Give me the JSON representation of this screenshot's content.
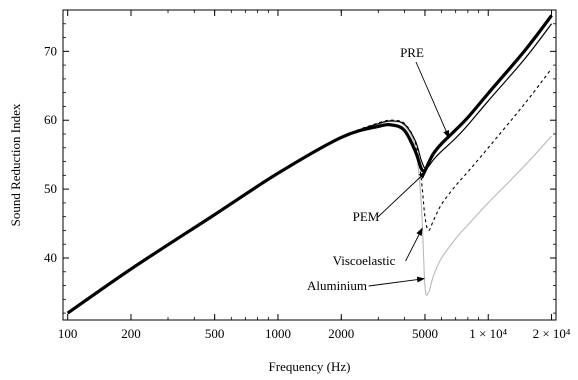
{
  "chart_data": {
    "type": "line",
    "xlabel": "Frequency (Hz)",
    "ylabel": "Sound Reduction Index",
    "x_scale": "log",
    "xlim": [
      95,
      21000
    ],
    "ylim": [
      31,
      76
    ],
    "grid": false,
    "legend": "none",
    "x_ticks": [
      {
        "value": 100,
        "label": "100"
      },
      {
        "value": 200,
        "label": "200"
      },
      {
        "value": 500,
        "label": "500"
      },
      {
        "value": 1000,
        "label": "1000"
      },
      {
        "value": 2000,
        "label": "2000"
      },
      {
        "value": 5000,
        "label": "5000"
      },
      {
        "value": 10000,
        "label": "1 × 10⁴"
      },
      {
        "value": 20000,
        "label": "2 × 10⁴"
      }
    ],
    "y_ticks": [
      {
        "value": 40,
        "label": "40"
      },
      {
        "value": 50,
        "label": "50"
      },
      {
        "value": 60,
        "label": "60"
      },
      {
        "value": 70,
        "label": "70"
      }
    ],
    "series": [
      {
        "name": "Aluminium",
        "color": "#b8b8b8",
        "dash": "none",
        "width": 1.1,
        "x": [
          100,
          200,
          500,
          1000,
          2000,
          3000,
          3500,
          4000,
          4500,
          4800,
          5000,
          5200,
          5500,
          6000,
          7000,
          8000,
          10000,
          15000,
          20000
        ],
        "y": [
          32.0,
          38.4,
          46.3,
          52.3,
          57.5,
          59.4,
          59.8,
          59.2,
          56.0,
          48.0,
          36.0,
          35.0,
          37.5,
          40.0,
          42.8,
          44.8,
          48.0,
          53.5,
          57.7
        ]
      },
      {
        "name": "Viscoelastic",
        "color": "#000000",
        "dash": "3,3",
        "width": 1.1,
        "x": [
          100,
          200,
          500,
          1000,
          2000,
          3000,
          3500,
          4000,
          4500,
          4800,
          5000,
          5200,
          5500,
          6000,
          7000,
          8000,
          10000,
          15000,
          20000
        ],
        "y": [
          32.0,
          38.4,
          46.3,
          52.3,
          57.5,
          59.6,
          60.0,
          59.5,
          56.8,
          51.5,
          46.0,
          44.0,
          45.5,
          47.8,
          50.5,
          52.5,
          56.0,
          62.5,
          67.5
        ]
      },
      {
        "name": "PEM",
        "color": "#000000",
        "dash": "none",
        "width": 1.2,
        "x": [
          100,
          200,
          500,
          1000,
          2000,
          3000,
          3500,
          4000,
          4500,
          4800,
          5000,
          5200,
          5500,
          6000,
          7000,
          8000,
          10000,
          15000,
          20000
        ],
        "y": [
          32.0,
          38.4,
          46.3,
          52.3,
          57.5,
          59.5,
          59.9,
          59.4,
          57.0,
          54.2,
          53.0,
          53.3,
          54.3,
          55.5,
          57.4,
          59.3,
          62.8,
          69.0,
          74.0
        ]
      },
      {
        "name": "PRE",
        "color": "#000000",
        "dash": "none",
        "width": 3.2,
        "x": [
          100,
          200,
          500,
          1000,
          2000,
          3000,
          3500,
          4000,
          4500,
          4800,
          5000,
          5200,
          5500,
          6000,
          7000,
          8000,
          10000,
          15000,
          20000
        ],
        "y": [
          32.0,
          38.4,
          46.3,
          52.3,
          57.5,
          59.1,
          59.3,
          58.5,
          55.5,
          53.0,
          52.7,
          53.8,
          55.2,
          56.6,
          58.6,
          60.4,
          63.9,
          70.2,
          75.2
        ]
      }
    ],
    "annotations": [
      {
        "text": "PRE",
        "target": [
          6500,
          57.5
        ]
      },
      {
        "text": "PEM",
        "target": [
          5050,
          52.5
        ]
      },
      {
        "text": "Viscoelastic",
        "target": [
          4850,
          44.3
        ]
      },
      {
        "text": "Aluminium",
        "target": [
          4950,
          37.0
        ]
      }
    ]
  }
}
